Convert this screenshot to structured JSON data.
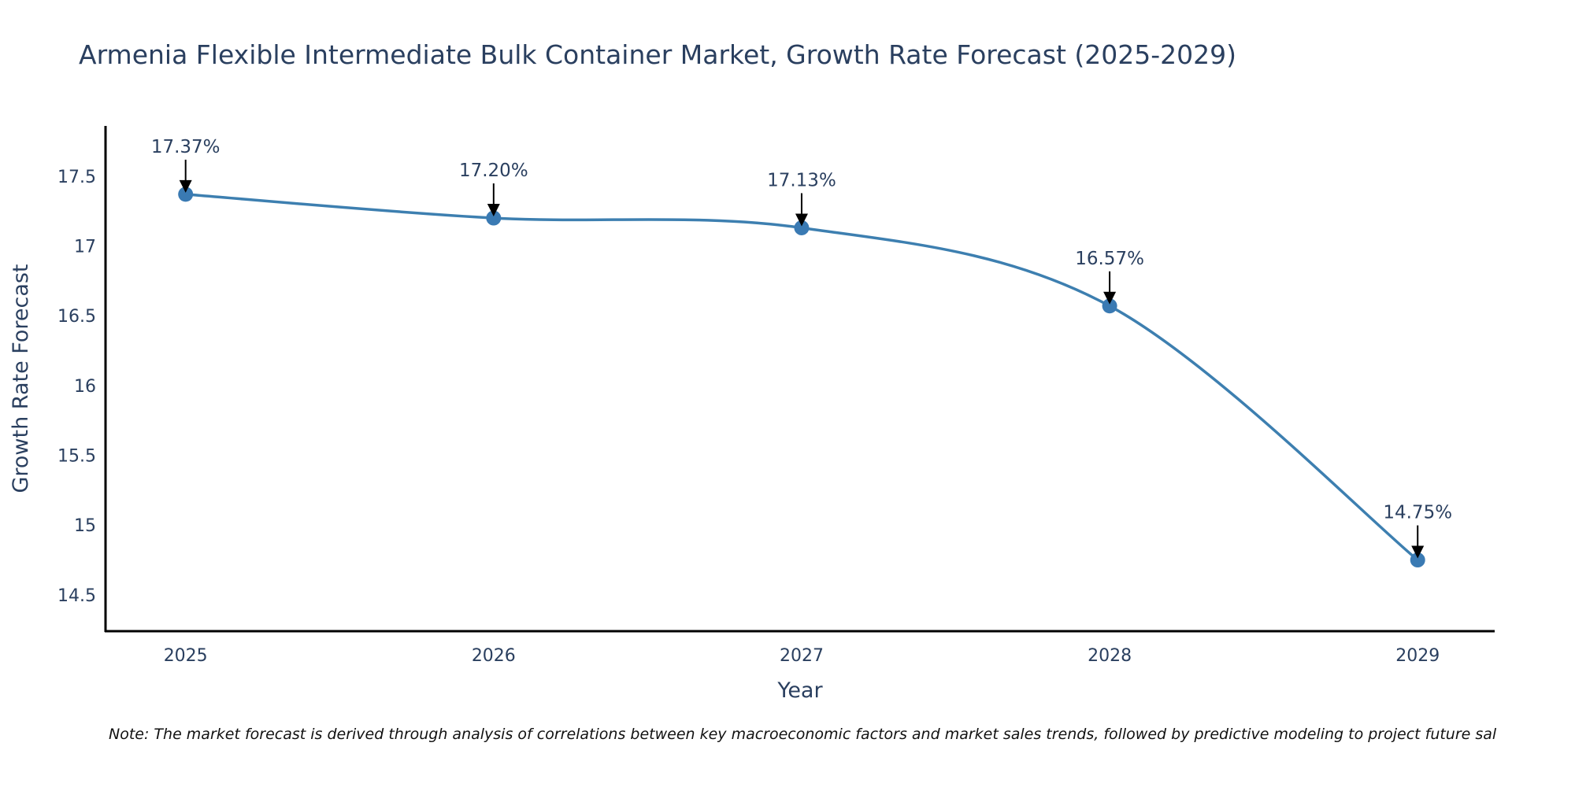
{
  "chart_data": {
    "type": "line",
    "title": "Armenia Flexible Intermediate Bulk Container Market, Growth Rate Forecast (2025-2029)",
    "xlabel": "Year",
    "ylabel": "Growth Rate Forecast",
    "x": [
      2025,
      2026,
      2027,
      2028,
      2029
    ],
    "x_tick_labels": [
      "2025",
      "2026",
      "2027",
      "2028",
      "2029"
    ],
    "series": [
      {
        "name": "Growth Rate Forecast",
        "values": [
          17.37,
          17.2,
          17.13,
          16.57,
          14.75
        ],
        "color": "#3d7fb0",
        "line_shape": "spline",
        "markers": true
      }
    ],
    "annotations": [
      "17.37%",
      "17.20%",
      "17.13%",
      "16.57%",
      "14.75%"
    ],
    "y_ticks": [
      14.5,
      15,
      15.5,
      16,
      16.5,
      17,
      17.5
    ],
    "y_tick_labels": [
      "14.5",
      "15",
      "15.5",
      "16",
      "16.5",
      "17",
      "17.5"
    ],
    "ylim": [
      14.24,
      17.86
    ],
    "xlim": [
      2024.74,
      2029.25
    ],
    "grid": false,
    "legend": "none",
    "note": "Note: The market forecast is derived through analysis of correlations between key macroeconomic factors and market sales trends, followed by predictive modeling to project future sal"
  },
  "colors": {
    "line": "#3d7fb0",
    "marker": "#3a7ab3",
    "axis": "#000000",
    "text": "#2a3f5f",
    "arrow": "#000000"
  }
}
